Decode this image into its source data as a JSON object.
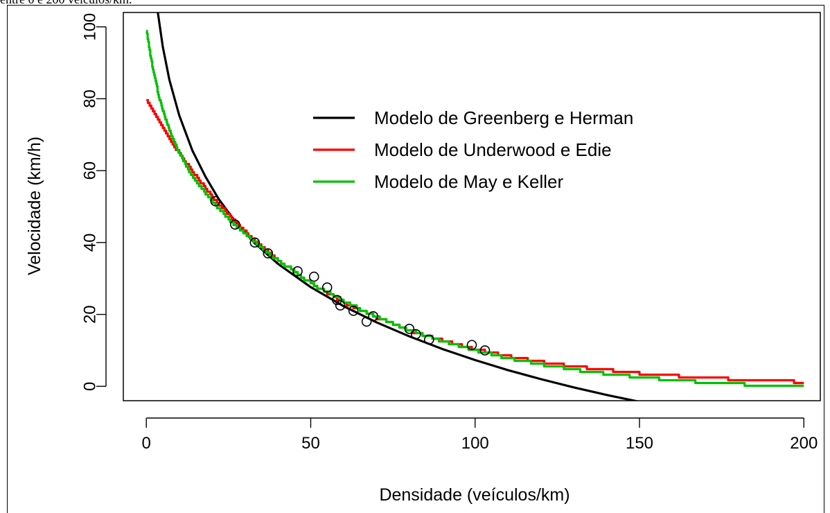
{
  "caption_fragment": "entre 0 e 200 veículos/km.",
  "chart_data": {
    "type": "line",
    "xlabel": "Densidade (veículos/km)",
    "ylabel": "Velocidade (km/h)",
    "xlim": [
      -7,
      205
    ],
    "ylim": [
      -4,
      104
    ],
    "xticks": [
      0,
      50,
      100,
      150,
      200
    ],
    "yticks": [
      0,
      20,
      40,
      60,
      80,
      100
    ],
    "xtick_labels": [
      "0",
      "50",
      "100",
      "150",
      "200"
    ],
    "ytick_labels": [
      "0",
      "20",
      "40",
      "60",
      "80",
      "100"
    ],
    "grid": false,
    "legend_position": "top-center",
    "series": [
      {
        "name": "Modelo de Greenberg e Herman",
        "color": "#000000",
        "type": "line",
        "x": [
          3.5,
          5,
          7,
          10,
          14,
          18,
          22,
          27,
          33,
          40,
          50,
          60,
          70,
          80,
          90,
          100,
          110,
          120,
          130,
          140,
          150,
          160,
          165
        ],
        "y": [
          104,
          94.5,
          85.3,
          75.4,
          65.6,
          58.3,
          52.1,
          45.9,
          39.8,
          34.1,
          27.6,
          22.3,
          17.8,
          13.9,
          10.4,
          7.3,
          4.5,
          2.0,
          -0.3,
          -2.4,
          -4.3,
          -6.1,
          -7.0
        ]
      },
      {
        "name": "Modelo de Underwood e Edie",
        "color": "#ff0000",
        "type": "step",
        "x": [
          0,
          5,
          10,
          15,
          20,
          25,
          30,
          35,
          40,
          50,
          60,
          70,
          80,
          90,
          100,
          110,
          120,
          130,
          140,
          150,
          160,
          170,
          180,
          190,
          200
        ],
        "y": [
          79.5,
          71.8,
          64.8,
          58.5,
          52.8,
          47.7,
          43.1,
          38.9,
          35.1,
          28.6,
          23.4,
          19.1,
          15.5,
          12.7,
          10.3,
          8.4,
          6.9,
          5.6,
          4.6,
          3.7,
          3.0,
          2.5,
          2.0,
          1.6,
          1.3
        ]
      },
      {
        "name": "Modelo de May e Keller",
        "color": "#00c000",
        "type": "step",
        "x": [
          0,
          2,
          4,
          6,
          8,
          10,
          13,
          16,
          20,
          25,
          30,
          35,
          40,
          50,
          60,
          70,
          80,
          90,
          100,
          110,
          120,
          130,
          140,
          150,
          160,
          170,
          180,
          190,
          200
        ],
        "y": [
          99,
          88,
          80,
          74,
          69,
          65,
          60,
          56,
          51.5,
          46.5,
          42.5,
          38.5,
          35,
          28.6,
          23.6,
          19.3,
          15.6,
          12.6,
          10,
          7.9,
          6.1,
          4.7,
          3.5,
          2.6,
          1.8,
          1.2,
          0.7,
          0.3,
          0
        ]
      },
      {
        "name": "",
        "color": "#000000",
        "type": "scatter",
        "x": [
          21,
          27,
          33,
          37,
          46,
          51,
          55,
          58,
          59,
          63,
          67,
          69,
          80,
          82,
          86,
          99,
          103
        ],
        "y": [
          51.5,
          45,
          40,
          37,
          32,
          30.5,
          27.5,
          24,
          22.5,
          21,
          18,
          19.5,
          16,
          14.5,
          13,
          11.5,
          10
        ]
      }
    ]
  }
}
